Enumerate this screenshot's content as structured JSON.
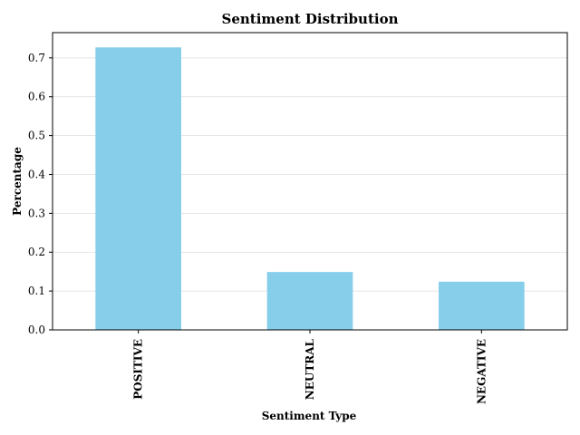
{
  "chart_data": {
    "type": "bar",
    "title": "Sentiment Distribution",
    "xlabel": "Sentiment Type",
    "ylabel": "Percentage",
    "categories": [
      "POSITIVE",
      "NEUTRAL",
      "NEGATIVE"
    ],
    "values": [
      0.727,
      0.149,
      0.124
    ],
    "ylim": [
      0,
      0.765
    ],
    "yticks": [
      "0.0",
      "0.1",
      "0.2",
      "0.3",
      "0.4",
      "0.5",
      "0.6",
      "0.7"
    ],
    "bar_color": "#87ceeb",
    "grid": true,
    "grid_axis": "y"
  }
}
